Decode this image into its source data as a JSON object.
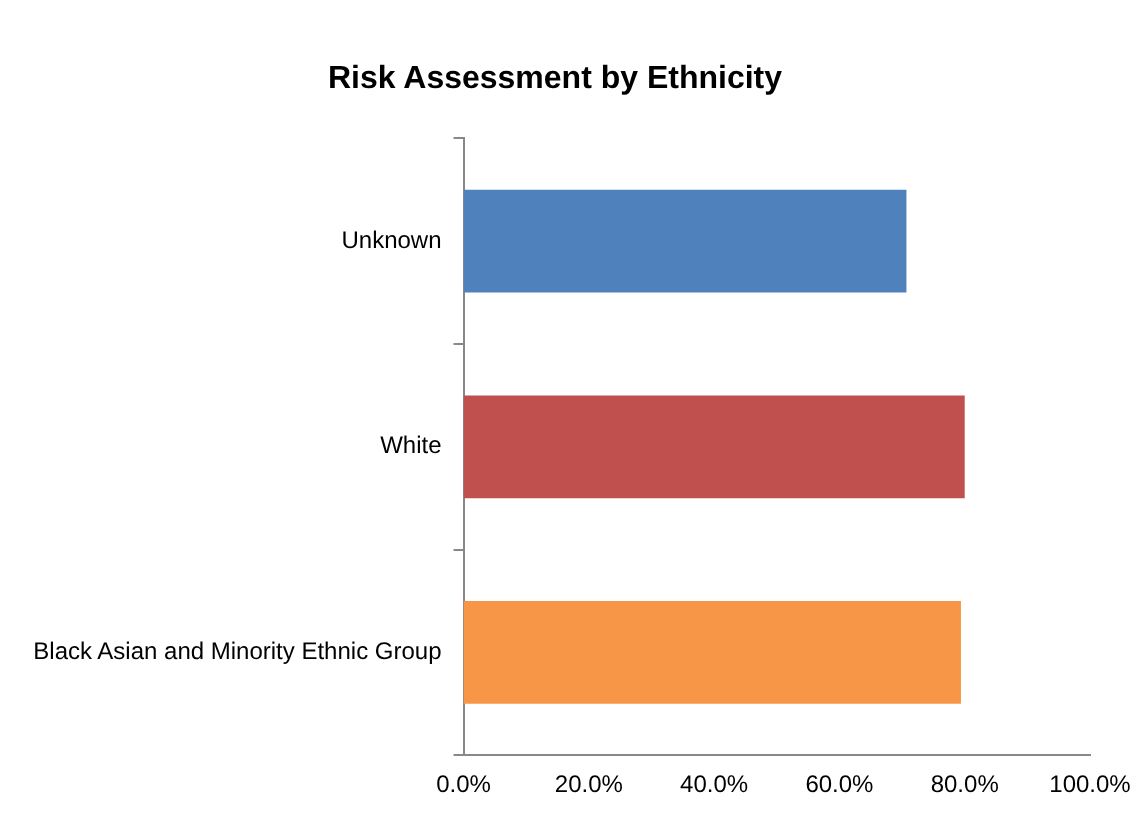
{
  "chart_data": {
    "type": "bar",
    "orientation": "horizontal",
    "title": "Risk Assessment by Ethnicity",
    "categories": [
      "Unknown",
      "White",
      "Black Asian and Minority Ethnic Group"
    ],
    "values": [
      70.7,
      80,
      79.4
    ],
    "colors": [
      "#4f81bd",
      "#c0504d",
      "#f79646"
    ],
    "xlim": [
      0,
      100
    ],
    "xticks": [
      {
        "value": 0,
        "label": "0.0%"
      },
      {
        "value": 20,
        "label": "20.0%"
      },
      {
        "value": 40,
        "label": "40.0%"
      },
      {
        "value": 60,
        "label": "60.0%"
      },
      {
        "value": 80,
        "label": "80.0%"
      },
      {
        "value": 100,
        "label": "100.0%"
      }
    ],
    "grid": false,
    "legend": false
  }
}
